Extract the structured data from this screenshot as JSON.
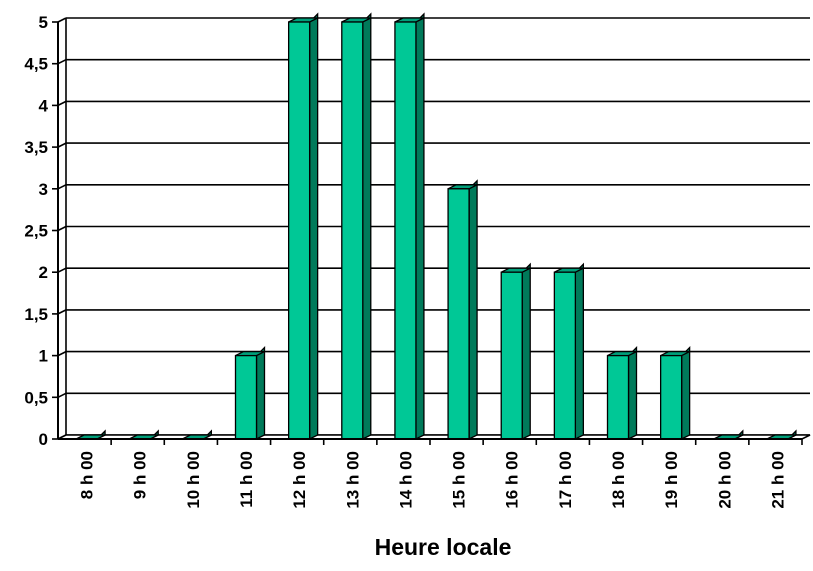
{
  "chart_data": {
    "type": "bar",
    "title": "",
    "xlabel": "Heure locale",
    "ylabel": "",
    "categories": [
      "8 h 00",
      "9 h 00",
      "10 h 00",
      "11 h 00",
      "12 h 00",
      "13 h 00",
      "14 h 00",
      "15 h 00",
      "16 h 00",
      "17 h 00",
      "18 h 00",
      "19 h 00",
      "20 h 00",
      "21 h 00"
    ],
    "values": [
      0,
      0,
      0,
      1,
      5,
      5,
      5,
      3,
      2,
      2,
      1,
      1,
      0,
      0
    ],
    "ylim": [
      0,
      5
    ],
    "yticks": [
      "0",
      "0,5",
      "1",
      "1,5",
      "2",
      "2,5",
      "3",
      "3,5",
      "4",
      "4,5",
      "5"
    ],
    "grid": true,
    "style": "3d-bar",
    "colors": {
      "bar_front": "#00C896",
      "bar_side": "#007A5A",
      "bar_top": "#00A07A",
      "grid": "#000000",
      "background": "#FFFFFF"
    }
  }
}
